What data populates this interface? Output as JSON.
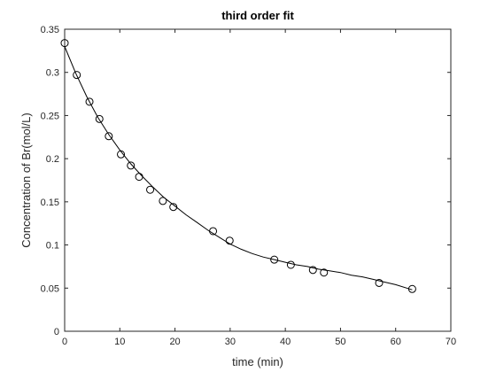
{
  "chart_data": {
    "type": "scatter",
    "title": "third order fit",
    "xlabel": "time (min)",
    "ylabel": "Concentration of Br(mol/L)",
    "xlim": [
      0,
      70
    ],
    "ylim": [
      0,
      0.35
    ],
    "xticks": [
      0,
      10,
      20,
      30,
      40,
      50,
      60,
      70
    ],
    "yticks": [
      0,
      0.05,
      0.1,
      0.15,
      0.2,
      0.25,
      0.3,
      0.35
    ],
    "xtick_labels": [
      "0",
      "10",
      "20",
      "30",
      "40",
      "50",
      "60",
      "70"
    ],
    "ytick_labels": [
      "0",
      "0.05",
      "0.1",
      "0.15",
      "0.2",
      "0.25",
      "0.3",
      "0.35"
    ],
    "grid": false,
    "box": true,
    "colors": {
      "axes": "#262626",
      "data": "#000000",
      "fit": "#000000"
    },
    "series": [
      {
        "kind": "markers",
        "marker": "open-circle",
        "x": [
          0,
          2.2,
          4.5,
          6.3,
          8,
          10.2,
          12,
          13.5,
          15.5,
          17.8,
          19.7,
          26.9,
          29.9,
          38,
          41,
          45,
          47,
          57,
          63
        ],
        "y": [
          0.334,
          0.297,
          0.266,
          0.246,
          0.226,
          0.205,
          0.192,
          0.179,
          0.164,
          0.151,
          0.144,
          0.116,
          0.105,
          0.083,
          0.077,
          0.071,
          0.068,
          0.056,
          0.049
        ]
      },
      {
        "kind": "line",
        "x": [
          0,
          2,
          4,
          6,
          8,
          10,
          12,
          14,
          16,
          18,
          20,
          22,
          24,
          26,
          28,
          30,
          32,
          34,
          36,
          38,
          40,
          42,
          44,
          46,
          48,
          50,
          52,
          54,
          56,
          58,
          60,
          63
        ],
        "y": [
          0.33,
          0.299,
          0.272,
          0.248,
          0.228,
          0.21,
          0.194,
          0.18,
          0.167,
          0.155,
          0.145,
          0.135,
          0.126,
          0.117,
          0.109,
          0.101,
          0.095,
          0.09,
          0.086,
          0.083,
          0.08,
          0.077,
          0.075,
          0.072,
          0.07,
          0.068,
          0.065,
          0.063,
          0.06,
          0.057,
          0.054,
          0.048
        ]
      }
    ]
  }
}
